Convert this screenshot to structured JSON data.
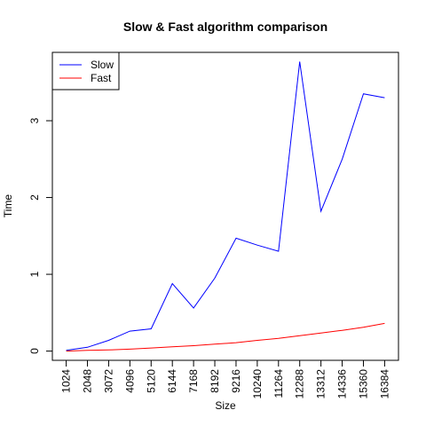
{
  "chart_data": {
    "type": "line",
    "title": "Slow & Fast algorithm comparison",
    "xlabel": "Size",
    "ylabel": "Time",
    "x": [
      1024,
      2048,
      3072,
      4096,
      5120,
      6144,
      7168,
      8192,
      9216,
      10240,
      11264,
      12288,
      13312,
      14336,
      15360,
      16384
    ],
    "xticks": [
      "1024",
      "2048",
      "3072",
      "4096",
      "5120",
      "6144",
      "7168",
      "8192",
      "9216",
      "10240",
      "11264",
      "12288",
      "13312",
      "14336",
      "15360",
      "16384"
    ],
    "ylim": [
      0,
      4
    ],
    "yticks": [
      0,
      1,
      2,
      3
    ],
    "ytick_labels": [
      "0",
      "1",
      "2",
      "3"
    ],
    "grid": false,
    "legend_position": "top-left",
    "series": [
      {
        "name": "Slow",
        "color": "#0000ff",
        "values": [
          0.01,
          0.05,
          0.14,
          0.26,
          0.29,
          0.88,
          0.56,
          0.95,
          1.47,
          1.38,
          1.3,
          3.77,
          1.82,
          2.5,
          3.35,
          3.3
        ]
      },
      {
        "name": "Fast",
        "color": "#ff0000",
        "values": [
          0.0,
          0.01,
          0.015,
          0.025,
          0.04,
          0.055,
          0.07,
          0.09,
          0.11,
          0.14,
          0.165,
          0.2,
          0.235,
          0.27,
          0.31,
          0.36
        ]
      }
    ]
  }
}
